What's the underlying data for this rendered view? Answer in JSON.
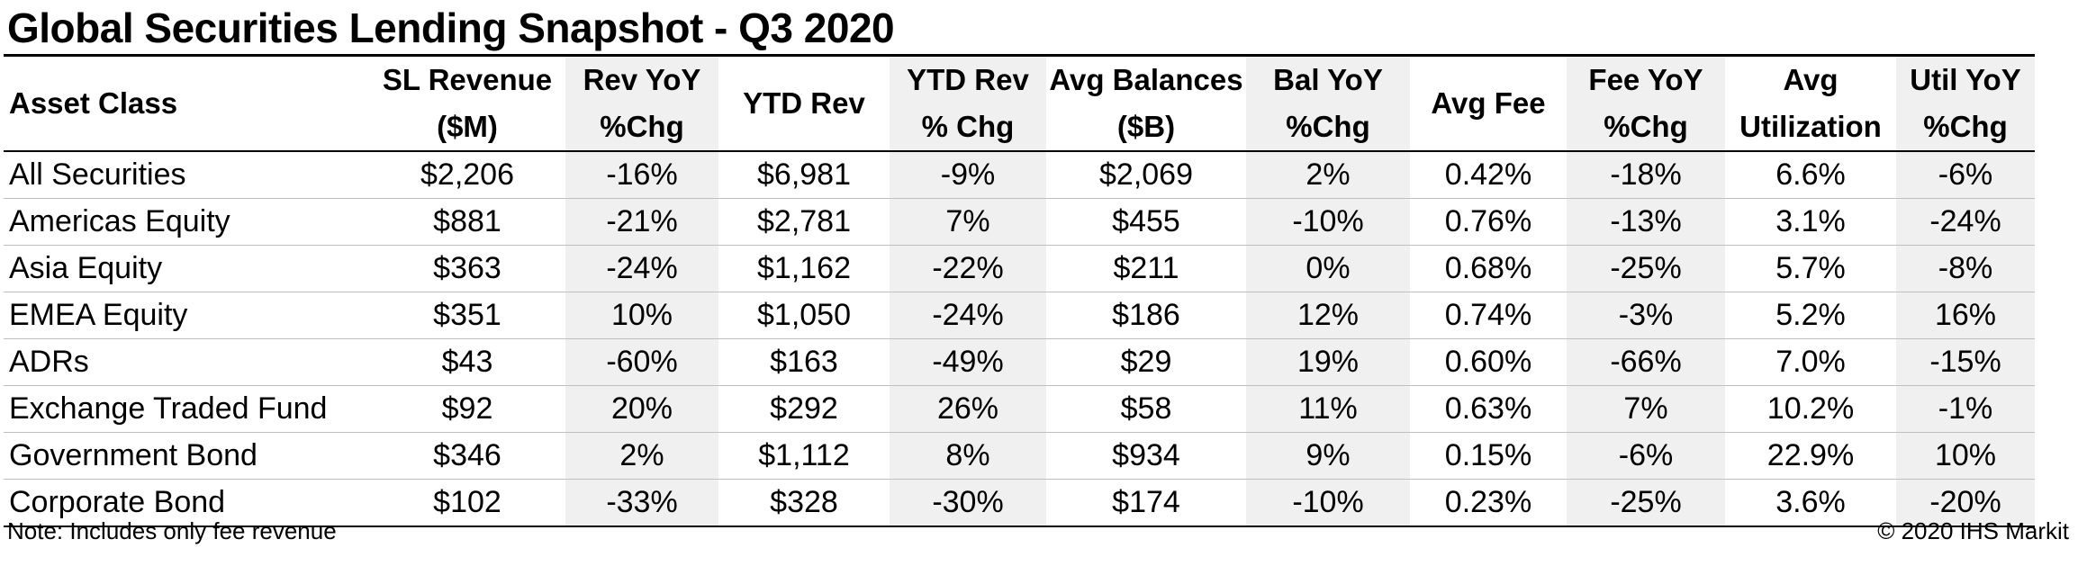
{
  "title": "Global Securities Lending Snapshot - Q3 2020",
  "columns": [
    {
      "line1": "Asset Class",
      "line2": ""
    },
    {
      "line1": "SL Revenue",
      "line2": "($M)"
    },
    {
      "line1": "Rev YoY",
      "line2": "%Chg"
    },
    {
      "line1": "YTD Rev",
      "line2": ""
    },
    {
      "line1": "YTD Rev",
      "line2": "% Chg"
    },
    {
      "line1": "Avg Balances",
      "line2": "($B)"
    },
    {
      "line1": "Bal YoY",
      "line2": "%Chg"
    },
    {
      "line1": "Avg Fee",
      "line2": ""
    },
    {
      "line1": "Fee YoY",
      "line2": "%Chg"
    },
    {
      "line1": "Avg",
      "line2": "Utilization"
    },
    {
      "line1": "Util YoY",
      "line2": "%Chg"
    }
  ],
  "rows": [
    [
      "All Securities",
      "$2,206",
      "-16%",
      "$6,981",
      "-9%",
      "$2,069",
      "2%",
      "0.42%",
      "-18%",
      "6.6%",
      "-6%"
    ],
    [
      "Americas Equity",
      "$881",
      "-21%",
      "$2,781",
      "7%",
      "$455",
      "-10%",
      "0.76%",
      "-13%",
      "3.1%",
      "-24%"
    ],
    [
      "Asia Equity",
      "$363",
      "-24%",
      "$1,162",
      "-22%",
      "$211",
      "0%",
      "0.68%",
      "-25%",
      "5.7%",
      "-8%"
    ],
    [
      "EMEA Equity",
      "$351",
      "10%",
      "$1,050",
      "-24%",
      "$186",
      "12%",
      "0.74%",
      "-3%",
      "5.2%",
      "16%"
    ],
    [
      "ADRs",
      "$43",
      "-60%",
      "$163",
      "-49%",
      "$29",
      "19%",
      "0.60%",
      "-66%",
      "7.0%",
      "-15%"
    ],
    [
      "Exchange Traded Fund",
      "$92",
      "20%",
      "$292",
      "26%",
      "$58",
      "11%",
      "0.63%",
      "7%",
      "10.2%",
      "-1%"
    ],
    [
      "Government Bond",
      "$346",
      "2%",
      "$1,112",
      "8%",
      "$934",
      "9%",
      "0.15%",
      "-6%",
      "22.9%",
      "10%"
    ],
    [
      "Corporate Bond",
      "$102",
      "-33%",
      "$328",
      "-30%",
      "$174",
      "-10%",
      "0.23%",
      "-25%",
      "3.6%",
      "-20%"
    ]
  ],
  "note": "Note: Includes only fee revenue",
  "copyright": "© 2020 IHS Markit",
  "colors": {
    "shaded_column": "#f0f0f0",
    "rule": "#000000",
    "row_divider": "#bfbfbf"
  }
}
